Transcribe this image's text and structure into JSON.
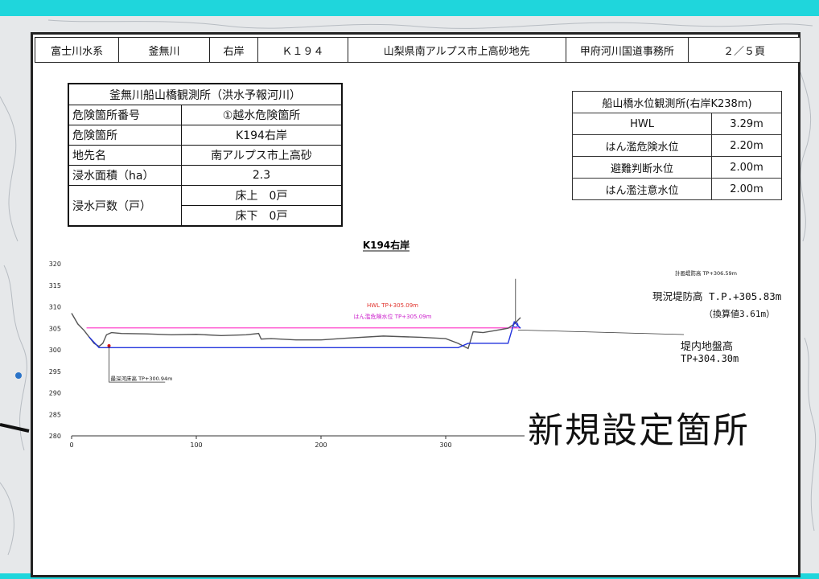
{
  "header": {
    "river_system": "富士川水系",
    "river": "釜無川",
    "bank": "右岸",
    "km": "Ｋ１９４",
    "location": "山梨県南アルプス市上高砂地先",
    "office": "甲府河川国道事務所",
    "page": "２／５頁"
  },
  "info_table": {
    "title": "釜無川船山橋観測所（洪水予報河川）",
    "rows": [
      {
        "label": "危険箇所番号",
        "value": "①越水危険箇所"
      },
      {
        "label": "危険箇所",
        "value": "K194右岸"
      },
      {
        "label": "地先名",
        "value": "南アルプス市上高砂"
      },
      {
        "label": "浸水面積（ha）",
        "value": "2.3"
      }
    ],
    "houses_label": "浸水戸数（戸）",
    "houses_above": "床上　0戸",
    "houses_below": "床下　0戸"
  },
  "water_level_table": {
    "title": "船山橋水位観測所(右岸K238m)",
    "rows": [
      {
        "label": "HWL",
        "value": "3.29m"
      },
      {
        "label": "はん濫危険水位",
        "value": "2.20m"
      },
      {
        "label": "避難判断水位",
        "value": "2.00m"
      },
      {
        "label": "はん濫注意水位",
        "value": "2.00m"
      }
    ]
  },
  "overlay_label": "新規設定箇所",
  "chart_data": {
    "type": "line",
    "title": "K194右岸",
    "xlim": [
      0,
      380
    ],
    "ylim": [
      280,
      320
    ],
    "xticks": [
      0,
      100,
      200,
      300
    ],
    "yticks": [
      280,
      285,
      290,
      295,
      300,
      305,
      310,
      315,
      320
    ],
    "grid": false,
    "hlines": [
      {
        "name": "HWL  TP+305.09m",
        "y": 305.09,
        "color": "#ff44cc"
      },
      {
        "name": "はん濫危険水位  TP+305.09m",
        "y": 305.09,
        "color": "#ff44cc"
      }
    ],
    "series": [
      {
        "color": "#555555",
        "x": [
          0,
          5,
          10,
          14,
          18,
          22,
          25,
          28,
          32,
          40,
          60,
          80,
          100,
          120,
          140,
          150,
          152,
          160,
          180,
          200,
          220,
          250,
          280,
          300,
          310,
          318,
          322,
          330,
          340,
          350,
          355,
          360
        ],
        "values": [
          308.5,
          306,
          304.5,
          303,
          301.5,
          300.8,
          301.5,
          303.5,
          304,
          303.8,
          303.7,
          303.5,
          303.6,
          303.3,
          303.5,
          303.8,
          302.5,
          302.6,
          302.3,
          302.3,
          302.7,
          303.2,
          302.9,
          302.6,
          301.5,
          300.3,
          304.2,
          304.0,
          304.5,
          305.0,
          306.0,
          307.5
        ]
      },
      {
        "color": "#2233dd",
        "x": [
          14,
          22,
          200,
          310,
          318,
          350,
          355,
          360
        ],
        "values": [
          303,
          300.5,
          300.5,
          300.5,
          301.5,
          301.5,
          306.5,
          305.0
        ]
      }
    ],
    "annotations": [
      {
        "text": "最深河床高  TP+300.94m",
        "x": 30,
        "y": 300.94
      },
      {
        "text": "計画堤防高  TP+306.59m",
        "x": 356,
        "y": 306.59
      },
      {
        "text": "現況堤防高 T.P.+305.83m",
        "x": 356,
        "y": 305.83
      },
      {
        "text": "（換算値3.61m）",
        "x": 356,
        "y": 305.83
      },
      {
        "text": "堤内地盤高",
        "x": 358,
        "y": 304.3
      },
      {
        "text": "TP+304.30m",
        "x": 358,
        "y": 304.3
      }
    ]
  }
}
